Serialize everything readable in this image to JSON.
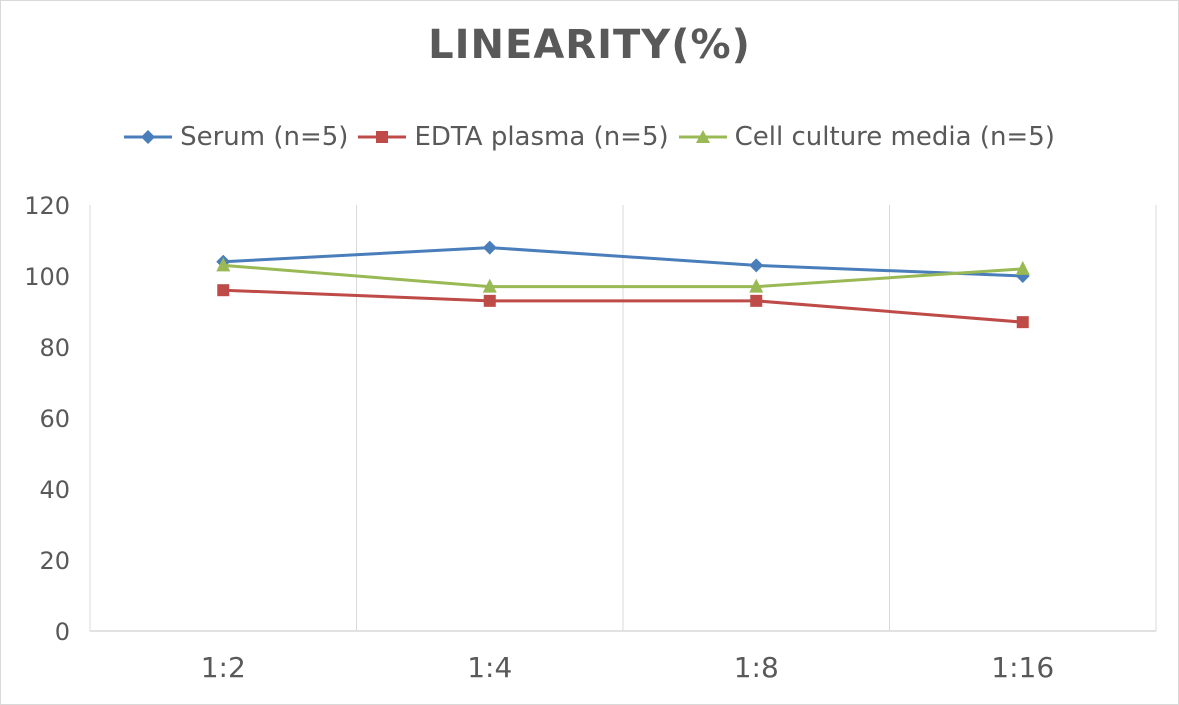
{
  "chart_data": {
    "type": "line",
    "title": "LINEARITY(%)",
    "categories": [
      "1:2",
      "1:4",
      "1:8",
      "1:16"
    ],
    "ylim": [
      0,
      120
    ],
    "yticks": [
      0,
      20,
      40,
      60,
      80,
      100,
      120
    ],
    "grid": "vertical",
    "legend_position": "top",
    "series": [
      {
        "name": "Serum (n=5)",
        "values": [
          104,
          108,
          103,
          100
        ],
        "color": "#4a7ebb",
        "marker": "diamond"
      },
      {
        "name": "EDTA plasma (n=5)",
        "values": [
          96,
          93,
          93,
          87
        ],
        "color": "#be4b48",
        "marker": "square"
      },
      {
        "name": "Cell culture media (n=5)",
        "values": [
          103,
          97,
          97,
          102
        ],
        "color": "#98b954",
        "marker": "triangle"
      }
    ]
  }
}
